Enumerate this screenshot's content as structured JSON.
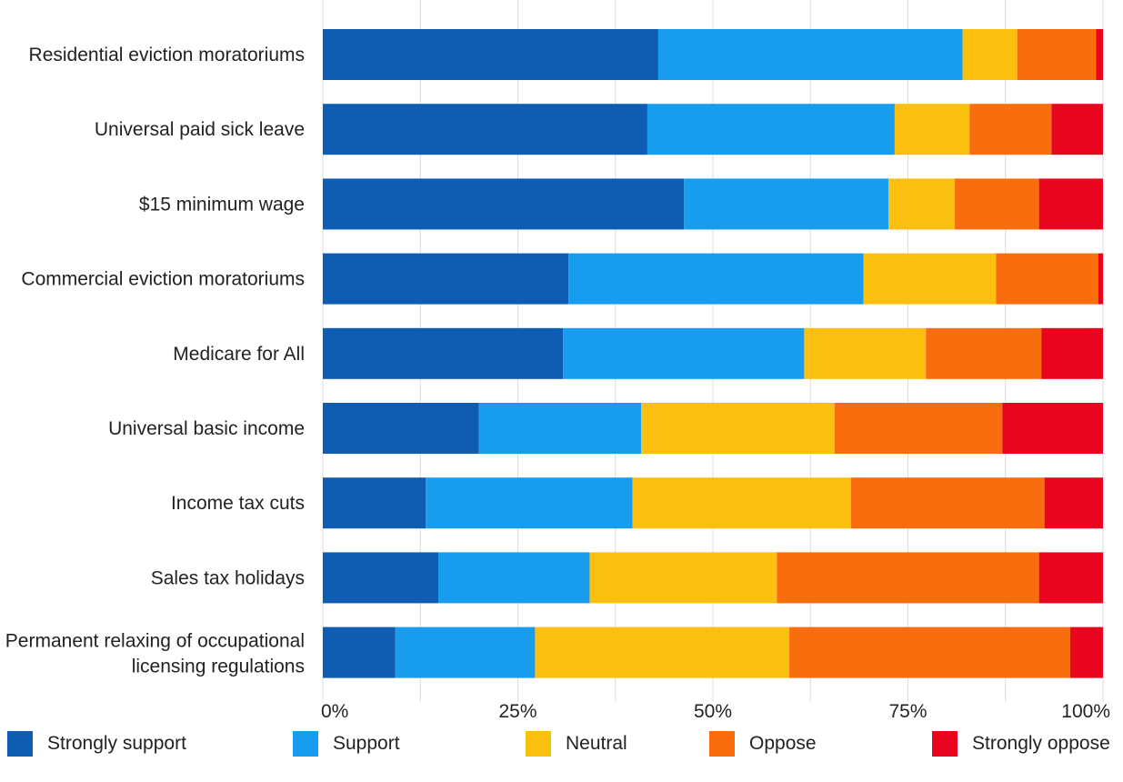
{
  "chart_data": {
    "type": "bar",
    "orientation": "horizontal",
    "stacked": true,
    "categories": [
      "Residential eviction moratoriums",
      "Universal paid sick leave",
      "$15 minimum wage",
      "Commercial eviction moratoriums",
      "Medicare for All",
      "Universal basic income",
      "Income tax cuts",
      "Sales tax holidays",
      "Permanent relaxing of occupational licensing regulations"
    ],
    "series": [
      {
        "name": "Strongly support",
        "color": "#0f5db3",
        "values": [
          43,
          41.6,
          46.3,
          31.5,
          30.8,
          20,
          13.2,
          14.8,
          9.3
        ]
      },
      {
        "name": "Support",
        "color": "#189dee",
        "values": [
          39,
          31.7,
          26.2,
          37.8,
          30.9,
          20.8,
          26.5,
          19.4,
          17.9
        ]
      },
      {
        "name": "Neutral",
        "color": "#fbbf0f",
        "values": [
          7,
          9.6,
          8.5,
          17,
          15.6,
          24.8,
          28,
          24,
          32.6
        ]
      },
      {
        "name": "Oppose",
        "color": "#f96d0e",
        "values": [
          10.1,
          10.5,
          10.8,
          13.1,
          14.8,
          21.5,
          24.8,
          33.6,
          36
        ]
      },
      {
        "name": "Strongly oppose",
        "color": "#e8051d",
        "values": [
          0.9,
          6.6,
          8.2,
          0.6,
          7.9,
          12.9,
          7.5,
          8.2,
          4.2
        ]
      }
    ],
    "x_ticks": [
      "0%",
      "25%",
      "50%",
      "75%",
      "100%"
    ],
    "xlim": [
      0,
      100
    ],
    "x_unit": "%",
    "grid": {
      "vertical": true,
      "step": 12.5
    },
    "legend_position": "bottom",
    "title": "",
    "xlabel": "",
    "ylabel": ""
  }
}
